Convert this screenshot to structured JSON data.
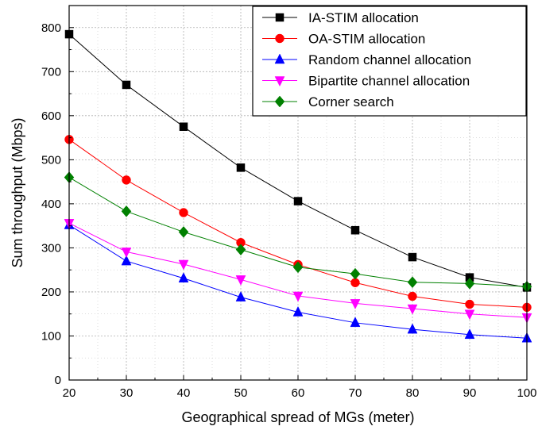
{
  "chart_data": {
    "type": "line",
    "xlabel": "Geographical spread of MGs (meter)",
    "ylabel": "Sum throughput (Mbps)",
    "xlim": [
      20,
      100
    ],
    "ylim": [
      0,
      850
    ],
    "x_ticks": [
      20,
      30,
      40,
      50,
      60,
      70,
      80,
      90,
      100
    ],
    "y_ticks": [
      0,
      100,
      200,
      300,
      400,
      500,
      600,
      700,
      800
    ],
    "grid": true,
    "legend_position": "top-right",
    "x": [
      20,
      30,
      40,
      50,
      60,
      70,
      80,
      90,
      100
    ],
    "series": [
      {
        "name": "IA-STIM allocation",
        "color": "#000000",
        "marker": "square",
        "values": [
          785,
          670,
          575,
          482,
          406,
          340,
          279,
          233,
          210
        ]
      },
      {
        "name": "OA-STIM allocation",
        "color": "#ff0000",
        "marker": "circle",
        "values": [
          546,
          454,
          380,
          312,
          262,
          221,
          190,
          172,
          165
        ]
      },
      {
        "name": "Random channel allocation",
        "color": "#0000ff",
        "marker": "triangle-up",
        "values": [
          352,
          270,
          231,
          188,
          154,
          130,
          115,
          103,
          95
        ]
      },
      {
        "name": "Bipartite channel allocation",
        "color": "#ff00ff",
        "marker": "triangle-down",
        "values": [
          356,
          291,
          263,
          228,
          191,
          174,
          162,
          150,
          142
        ]
      },
      {
        "name": "Corner search",
        "color": "#008000",
        "marker": "diamond",
        "values": [
          460,
          383,
          336,
          296,
          256,
          241,
          222,
          219,
          212
        ]
      }
    ]
  }
}
